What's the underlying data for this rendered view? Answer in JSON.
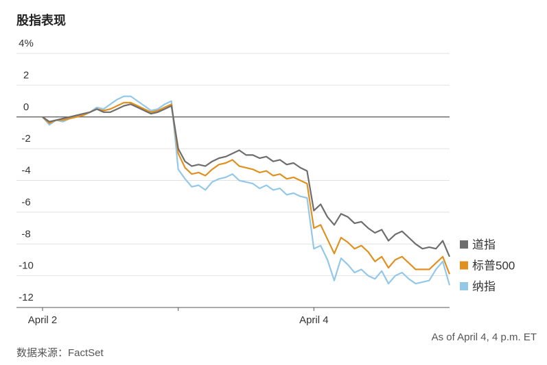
{
  "chart_data": {
    "type": "line",
    "title": "股指表现",
    "note": "As of April 4, 4 p.m. ET",
    "source": "数据来源：FactSet",
    "categories": [
      "April 2",
      null,
      null,
      null,
      null,
      null,
      null,
      null,
      null,
      null,
      null,
      null,
      null,
      null,
      null,
      null,
      null,
      null,
      null,
      null,
      null,
      null,
      null,
      null,
      null,
      null,
      null,
      null,
      null,
      null,
      null,
      null,
      null,
      null,
      null,
      null,
      null,
      null,
      null,
      null,
      "April 4",
      null,
      null,
      null,
      null,
      null,
      null,
      null,
      null,
      null,
      null,
      null,
      null,
      null,
      null,
      null,
      null,
      null,
      null,
      null,
      null
    ],
    "series": [
      {
        "name": "道指",
        "color": "#6d6d6d",
        "values": [
          0,
          -0.3,
          -0.2,
          -0.1,
          0,
          0.1,
          0.2,
          0.3,
          0.5,
          0.3,
          0.3,
          0.5,
          0.7,
          0.8,
          0.6,
          0.4,
          0.2,
          0.3,
          0.5,
          0.7,
          -2.0,
          -2.8,
          -3.1,
          -3.0,
          -3.1,
          -2.8,
          -2.6,
          -2.5,
          -2.3,
          -2.1,
          -2.4,
          -2.4,
          -2.6,
          -2.5,
          -2.8,
          -2.7,
          -3.0,
          -2.9,
          -3.2,
          -3.4,
          -5.9,
          -5.5,
          -6.3,
          -6.8,
          -6.1,
          -6.3,
          -6.7,
          -6.6,
          -7.0,
          -7.3,
          -7.1,
          -7.8,
          -7.4,
          -7.2,
          -7.6,
          -8.0,
          -8.3,
          -8.2,
          -8.3,
          -7.8,
          -8.8
        ]
      },
      {
        "name": "标普500",
        "color": "#e0901f",
        "values": [
          0,
          -0.4,
          -0.2,
          -0.2,
          -0.1,
          0,
          0.1,
          0.3,
          0.5,
          0.4,
          0.5,
          0.7,
          0.9,
          0.9,
          0.7,
          0.5,
          0.3,
          0.4,
          0.6,
          0.8,
          -2.3,
          -3.2,
          -3.6,
          -3.5,
          -3.7,
          -3.3,
          -3.0,
          -2.9,
          -2.7,
          -3.1,
          -3.2,
          -3.3,
          -3.5,
          -3.4,
          -3.7,
          -3.6,
          -3.9,
          -3.8,
          -4.0,
          -4.2,
          -7.0,
          -6.8,
          -7.7,
          -8.6,
          -7.6,
          -7.9,
          -8.3,
          -8.1,
          -8.5,
          -9.1,
          -8.8,
          -9.5,
          -9.0,
          -8.8,
          -9.2,
          -9.6,
          -9.6,
          -9.6,
          -9.2,
          -8.8,
          -9.9
        ]
      },
      {
        "name": "纳指",
        "color": "#93c8e8",
        "values": [
          0,
          -0.5,
          -0.2,
          -0.3,
          -0.1,
          0.1,
          0.1,
          0.3,
          0.6,
          0.5,
          0.8,
          1.1,
          1.3,
          1.3,
          1.0,
          0.7,
          0.4,
          0.5,
          0.8,
          1.0,
          -3.3,
          -3.9,
          -4.4,
          -4.3,
          -4.6,
          -4.1,
          -3.9,
          -3.8,
          -3.6,
          -4.0,
          -4.1,
          -4.2,
          -4.5,
          -4.3,
          -4.6,
          -4.5,
          -4.9,
          -4.8,
          -5.0,
          -5.1,
          -8.3,
          -8.1,
          -9.0,
          -10.3,
          -8.9,
          -9.3,
          -9.8,
          -9.6,
          -10.0,
          -10.2,
          -9.7,
          -10.5,
          -10.0,
          -9.8,
          -10.2,
          -10.5,
          -10.4,
          -10.3,
          -9.6,
          -9.1,
          -10.6
        ]
      }
    ],
    "ylim": [
      -12,
      4
    ],
    "yticks": [
      {
        "value": 4,
        "label": "4%"
      },
      2,
      0,
      -2,
      -4,
      -6,
      -8,
      -10,
      -12
    ],
    "grid": true
  }
}
